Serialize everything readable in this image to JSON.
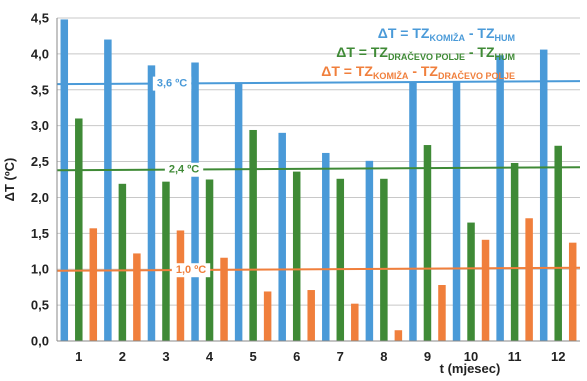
{
  "chart_data": {
    "type": "bar",
    "categories": [
      "1",
      "2",
      "3",
      "4",
      "5",
      "6",
      "7",
      "8",
      "9",
      "10",
      "11",
      "12"
    ],
    "series": [
      {
        "name": "ΔT = TZ KOMIŽA - TZ HUM",
        "legend_parts": [
          "ΔT = TZ",
          "KOMIŽA",
          " - TZ",
          "HUM"
        ],
        "color": "#4a9ad8",
        "values": [
          4.48,
          4.2,
          3.84,
          3.88,
          3.58,
          2.9,
          2.62,
          2.51,
          3.6,
          3.62,
          3.98,
          4.06
        ],
        "ref_value": 3.6,
        "ref_label": "3,6 ºC"
      },
      {
        "name": "ΔT = TZ DRAČEVO POLJE - TZ HUM",
        "legend_parts": [
          "ΔT = TZ",
          "DRAČEVO POLJE",
          " - TZ",
          "HUM"
        ],
        "color": "#3f8a36",
        "values": [
          3.1,
          2.19,
          2.22,
          2.25,
          2.94,
          2.36,
          2.26,
          2.26,
          2.73,
          1.65,
          2.48,
          2.72
        ],
        "ref_value": 2.4,
        "ref_label": "2,4 ºC"
      },
      {
        "name": "ΔT = TZ KOMIŽA - TZ DRAČEVO POLJE",
        "legend_parts": [
          "ΔT = TZ",
          "KOMIŽA",
          " - TZ",
          "DRAČEVO POLJE"
        ],
        "color": "#f07f3c",
        "values": [
          1.57,
          1.22,
          1.54,
          1.16,
          0.69,
          0.71,
          0.52,
          0.15,
          0.78,
          1.41,
          1.71,
          1.37
        ],
        "ref_value": 1.0,
        "ref_label": "1,0 ºC"
      }
    ],
    "ylabel": "ΔT (ºC)",
    "xlabel": "t (mjesec)",
    "ylim": [
      0,
      4.5
    ],
    "yticks": [
      "0,0",
      "0,5",
      "1,0",
      "1,5",
      "2,0",
      "2,5",
      "3,0",
      "3,5",
      "4,0",
      "4,5"
    ],
    "grid": true,
    "legend_position": "top-right"
  }
}
